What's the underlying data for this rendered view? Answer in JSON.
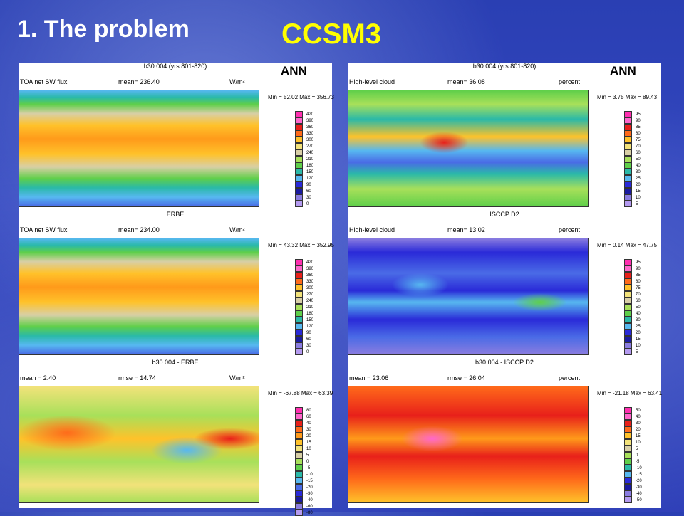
{
  "slide": {
    "title": "1. The problem",
    "subtitle": "CCSM3"
  },
  "panels": {
    "left": [
      {
        "header_center": "b30.004 (yrs 801-820)",
        "header_left": "TOA net SW flux",
        "header_mean": "mean= 236.40",
        "header_unit": "W/m²",
        "ann": "ANN",
        "minmax": "Min = 52.02  Max = 356.73"
      },
      {
        "header_center": "ERBE",
        "header_left": "TOA net SW flux",
        "header_mean": "mean= 234.00",
        "header_unit": "W/m²",
        "ann": "",
        "minmax": "Min = 43.32  Max = 352.95"
      },
      {
        "header_center": "b30.004 - ERBE",
        "header_left": "mean =  2.40",
        "header_mean": "rmse = 14.74",
        "header_unit": "W/m²",
        "ann": "",
        "minmax": "Min = -67.88  Max = 63.39"
      }
    ],
    "right": [
      {
        "header_center": "b30.004 (yrs 801-820)",
        "header_left": "High-level cloud",
        "header_mean": "mean= 36.08",
        "header_unit": "percent",
        "ann": "ANN",
        "minmax": "Min =  3.75  Max = 89.43"
      },
      {
        "header_center": "ISCCP D2",
        "header_left": "High-level cloud",
        "header_mean": "mean= 13.02",
        "header_unit": "percent",
        "ann": "",
        "minmax": "Min =  0.14  Max = 47.75"
      },
      {
        "header_center": "b30.004 - ISCCP D2",
        "header_left": "mean = 23.06",
        "header_mean": "rmse = 26.04",
        "header_unit": "percent",
        "ann": "",
        "minmax": "Min = -21.18  Max = 63.41"
      }
    ]
  },
  "colorbars": {
    "sw_abs": [
      "420",
      "390",
      "360",
      "330",
      "300",
      "270",
      "240",
      "210",
      "180",
      "150",
      "120",
      "90",
      "60",
      "30",
      "0"
    ],
    "sw_diff": [
      "80",
      "60",
      "40",
      "30",
      "20",
      "15",
      "10",
      "5",
      "0",
      "-5",
      "-10",
      "-15",
      "-20",
      "-30",
      "-40",
      "-60",
      "-80"
    ],
    "cloud_abs": [
      "95",
      "90",
      "85",
      "80",
      "75",
      "70",
      "60",
      "50",
      "40",
      "30",
      "25",
      "20",
      "15",
      "10",
      "5"
    ],
    "cloud_diff": [
      "50",
      "40",
      "30",
      "20",
      "15",
      "10",
      "5",
      "0",
      "-5",
      "-10",
      "-15",
      "-20",
      "-30",
      "-40",
      "-50"
    ]
  },
  "colors": {
    "palette": [
      "#ff2fb0",
      "#ff66cc",
      "#e8201a",
      "#ff6a1a",
      "#ff9a1a",
      "#ffc22a",
      "#f2e27a",
      "#d8cfa6",
      "#a8e05a",
      "#5fcf4a",
      "#2ab9a8",
      "#57b8f0",
      "#4a6be6",
      "#2a2ad8",
      "#1a1aa0",
      "#8a7ce0",
      "#b49af0"
    ]
  }
}
